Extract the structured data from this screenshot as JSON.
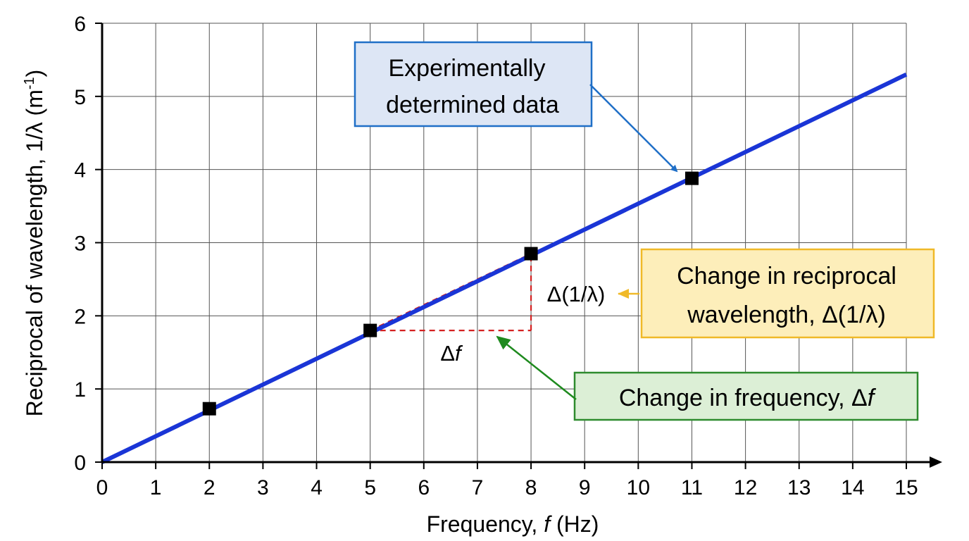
{
  "chart_data": {
    "type": "line",
    "xlabel_prefix": "Frequency, ",
    "xlabel_var": "f",
    "xlabel_unit": " (Hz)",
    "ylabel_main": "Reciprocal of wavelength, 1/λ (m",
    "ylabel_sup": "-1",
    "ylabel_close": ")",
    "xlim": [
      0,
      15
    ],
    "ylim": [
      0,
      6
    ],
    "x_ticks": [
      "0",
      "1",
      "2",
      "3",
      "4",
      "5",
      "6",
      "7",
      "8",
      "9",
      "10",
      "11",
      "12",
      "13",
      "14",
      "15"
    ],
    "y_ticks": [
      "0",
      "1",
      "2",
      "3",
      "4",
      "5",
      "6"
    ],
    "grid": true,
    "series": [
      {
        "kind": "best-fit-line",
        "color": "#1a35d6",
        "x": [
          0,
          15
        ],
        "y": [
          0,
          5.3
        ]
      },
      {
        "kind": "data-points",
        "color": "#000000",
        "x": [
          2,
          5,
          8,
          11
        ],
        "y": [
          0.73,
          1.8,
          2.85,
          3.88
        ]
      }
    ],
    "slope_triangle": {
      "color": "#d42020",
      "x1": 5,
      "y1": 1.8,
      "x2": 8,
      "y2": 2.85,
      "delta_f_label": "Δ",
      "delta_f_var": "f",
      "delta_inv_label": "Δ(1/λ)"
    },
    "annotations": {
      "data_box": {
        "lines": [
          "Experimentally",
          "determined data"
        ],
        "fill": "#dde6f5",
        "border": "#1f6fc7",
        "arrow_color": "#1f6fc7"
      },
      "reciprocal_box": {
        "lines": [
          "Change in reciprocal",
          "wavelength, Δ(1/λ)"
        ],
        "fill": "#fdeeba",
        "border": "#f0b928",
        "arrow_color": "#f0b928"
      },
      "frequency_box": {
        "text": "Change in frequency, Δ",
        "var": "f",
        "fill": "#dcefd6",
        "border": "#2e8b2e",
        "arrow_color": "#1e8a1e"
      }
    }
  }
}
